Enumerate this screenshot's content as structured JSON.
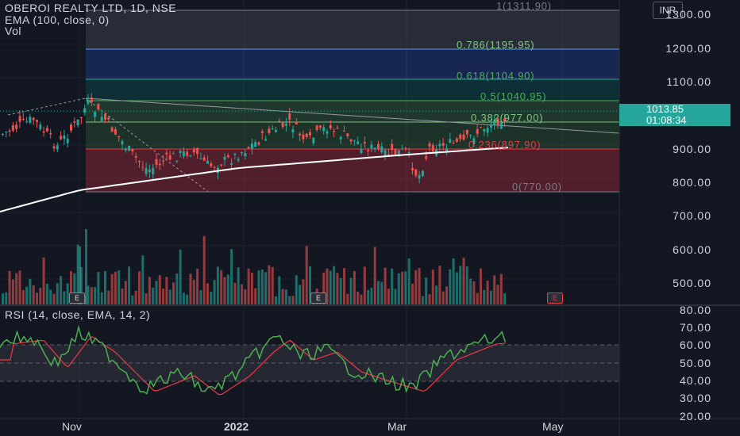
{
  "header": {
    "title": "OBEROI REALTY LTD, 1D, NSE",
    "indicator": "EMA (100, close, 0)",
    "volume_label": "Vol"
  },
  "currency_button": "INR",
  "price_tag": {
    "price": "1013.85",
    "countdown": "01:08:34"
  },
  "price_axis": [
    "1300.00",
    "1200.00",
    "1100.00",
    "1000.00",
    "900.00",
    "800.00",
    "700.00",
    "600.00",
    "500.00"
  ],
  "rsi_axis": [
    "80.00",
    "70.00",
    "60.00",
    "50.00",
    "40.00",
    "30.00",
    "20.00"
  ],
  "x_axis": [
    "Nov",
    "2022",
    "Mar",
    "May"
  ],
  "rsi_header": "RSI (14, close, EMA, 14, 2)",
  "fib_levels": [
    {
      "label": "1(1311.90)",
      "color": "#787b86"
    },
    {
      "label": "0.786(1195.95)",
      "color": "#81c784"
    },
    {
      "label": "0.618(1104.90)",
      "color": "#4caf50"
    },
    {
      "label": "0.5(1040.95)",
      "color": "#4caf50"
    },
    {
      "label": "0.382(977.00)",
      "color": "#81c784"
    },
    {
      "label": "0.236(897.90)",
      "color": "#f23645"
    },
    {
      "label": "0(770.00)",
      "color": "#787b86"
    }
  ],
  "earnings_badge": "E",
  "colors": {
    "up": "#26a69a",
    "down": "#ef5350",
    "ema": "#ffffff",
    "rsi": "#4caf50",
    "rsi_ma": "#f23645"
  }
}
